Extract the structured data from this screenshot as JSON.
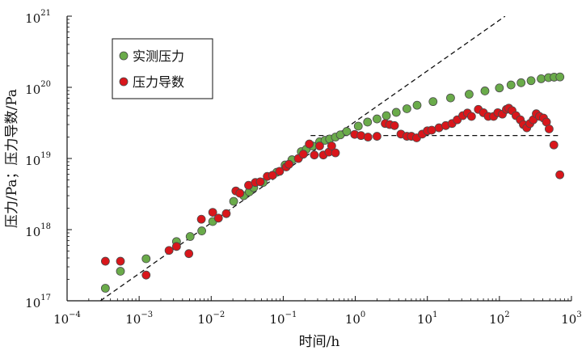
{
  "chart_data": {
    "type": "scatter",
    "title": "",
    "xlabel": "时间/h",
    "ylabel": "压力/Pa；压力导数/Pa",
    "x_scale": "log",
    "y_scale": "log",
    "xlim": [
      0.0001,
      1000
    ],
    "ylim": [
      1e+17,
      1e+21
    ],
    "grid": false,
    "legend_position": "top-left",
    "x_ticks": [
      {
        "base": "10",
        "exp": "−4",
        "value": 0.0001
      },
      {
        "base": "10",
        "exp": "−3",
        "value": 0.001
      },
      {
        "base": "10",
        "exp": "−2",
        "value": 0.01
      },
      {
        "base": "10",
        "exp": "−1",
        "value": 0.1
      },
      {
        "base": "10",
        "exp": "0",
        "value": 1
      },
      {
        "base": "10",
        "exp": "1",
        "value": 10
      },
      {
        "base": "10",
        "exp": "2",
        "value": 100
      },
      {
        "base": "10",
        "exp": "3",
        "value": 1000
      }
    ],
    "y_ticks": [
      {
        "base": "10",
        "exp": "17",
        "value": 1e+17
      },
      {
        "base": "10",
        "exp": "18",
        "value": 1e+18
      },
      {
        "base": "10",
        "exp": "19",
        "value": 1e+19
      },
      {
        "base": "10",
        "exp": "20",
        "value": 1e+20
      },
      {
        "base": "10",
        "exp": "21",
        "value": 1e+21
      }
    ],
    "series": [
      {
        "name": "实测压力",
        "color": "#6aab4a",
        "points": [
          [
            0.00034,
            1.5e+17
          ],
          [
            0.00055,
            2.6e+17
          ],
          [
            0.00125,
            3.9e+17
          ],
          [
            0.0033,
            6.8e+17
          ],
          [
            0.0051,
            8e+17
          ],
          [
            0.0074,
            9.6e+17
          ],
          [
            0.0105,
            1.3e+18
          ],
          [
            0.0205,
            2.5e+18
          ],
          [
            0.0283,
            3e+18
          ],
          [
            0.0338,
            3.4e+18
          ],
          [
            0.0389,
            3.9e+18
          ],
          [
            0.0525,
            4.6e+18
          ],
          [
            0.0813,
            6.4e+18
          ],
          [
            0.106,
            8.1e+18
          ],
          [
            0.132,
            9.6e+18
          ],
          [
            0.178,
            1.25e+19
          ],
          [
            0.209,
            1.35e+19
          ],
          [
            0.257,
            1.5e+19
          ],
          [
            0.32,
            1.72e+19
          ],
          [
            0.38,
            1.8e+19
          ],
          [
            0.44,
            1.88e+19
          ],
          [
            0.53,
            2e+19
          ],
          [
            0.62,
            2.15e+19
          ],
          [
            0.76,
            2.4e+19
          ],
          [
            1.1,
            2.85e+19
          ],
          [
            1.48,
            3.25e+19
          ],
          [
            2.0,
            3.6e+19
          ],
          [
            2.7,
            4e+19
          ],
          [
            3.7,
            4.45e+19
          ],
          [
            5.2,
            5e+19
          ],
          [
            7.2,
            5.6e+19
          ],
          [
            12.0,
            6.3e+19
          ],
          [
            21,
            7.1e+19
          ],
          [
            38,
            8e+19
          ],
          [
            63,
            8.9e+19
          ],
          [
            100,
            9.8e+19
          ],
          [
            145,
            1.08e+20
          ],
          [
            200,
            1.16e+20
          ],
          [
            275,
            1.24e+20
          ],
          [
            380,
            1.32e+20
          ],
          [
            480,
            1.37e+20
          ],
          [
            575,
            1.39e+20
          ],
          [
            692,
            1.4e+20
          ]
        ]
      },
      {
        "name": "压力导数",
        "color": "#d9161b",
        "points": [
          [
            0.00034,
            3.6e+17
          ],
          [
            0.00055,
            3.6e+17
          ],
          [
            0.00125,
            2.3e+17
          ],
          [
            0.0026,
            5.1e+17
          ],
          [
            0.0033,
            5.8e+17
          ],
          [
            0.0049,
            4.6e+17
          ],
          [
            0.0073,
            1.4e+18
          ],
          [
            0.0105,
            1.75e+18
          ],
          [
            0.0126,
            1.45e+18
          ],
          [
            0.0162,
            1.68e+18
          ],
          [
            0.022,
            3.5e+18
          ],
          [
            0.025,
            3.25e+18
          ],
          [
            0.033,
            4.2e+18
          ],
          [
            0.041,
            4.6e+18
          ],
          [
            0.048,
            4.7e+18
          ],
          [
            0.06,
            5.6e+18
          ],
          [
            0.071,
            5.8e+18
          ],
          [
            0.089,
            6.6e+18
          ],
          [
            0.11,
            7.6e+18
          ],
          [
            0.12,
            8.3e+18
          ],
          [
            0.162,
            1e+19
          ],
          [
            0.19,
            1.15e+19
          ],
          [
            0.23,
            1.6e+19
          ],
          [
            0.27,
            1.12e+19
          ],
          [
            0.32,
            1.5e+19
          ],
          [
            0.36,
            1.12e+19
          ],
          [
            0.43,
            1.23e+19
          ],
          [
            0.47,
            1.5e+19
          ],
          [
            0.53,
            1.2e+19
          ],
          [
            0.98,
            2.18e+19
          ],
          [
            1.2,
            2.1e+19
          ],
          [
            1.5,
            2e+19
          ],
          [
            2.0,
            2.05e+19
          ],
          [
            2.6,
            3.1e+19
          ],
          [
            3.0,
            3e+19
          ],
          [
            3.5,
            2.9e+19
          ],
          [
            4.3,
            2.2e+19
          ],
          [
            5.2,
            2.05e+19
          ],
          [
            6.0,
            2.05e+19
          ],
          [
            7.1,
            1.95e+19
          ],
          [
            8.5,
            2.2e+19
          ],
          [
            10.0,
            2.45e+19
          ],
          [
            11.5,
            2.5e+19
          ],
          [
            14.5,
            2.7e+19
          ],
          [
            18.0,
            2.9e+19
          ],
          [
            22.0,
            3.1e+19
          ],
          [
            26.0,
            3.5e+19
          ],
          [
            31.0,
            4e+19
          ],
          [
            36.0,
            4.35e+19
          ],
          [
            41.0,
            3.9e+19
          ],
          [
            51.0,
            4.9e+19
          ],
          [
            60.0,
            4.4e+19
          ],
          [
            70.0,
            3.9e+19
          ],
          [
            83.0,
            3.9e+19
          ],
          [
            95.0,
            4.4e+19
          ],
          [
            110.0,
            4.2e+19
          ],
          [
            125.0,
            4.9e+19
          ],
          [
            135.0,
            5.1e+19
          ],
          [
            150.0,
            4.7e+19
          ],
          [
            170.0,
            4e+19
          ],
          [
            195.0,
            3.5e+19
          ],
          [
            215.0,
            3e+19
          ],
          [
            240.0,
            2.7e+19
          ],
          [
            265.0,
            3.1e+19
          ],
          [
            295.0,
            3.5e+19
          ],
          [
            325.0,
            4.25e+19
          ],
          [
            360.0,
            3.9e+19
          ],
          [
            410.0,
            3.7e+19
          ],
          [
            450.0,
            3.25e+19
          ],
          [
            490.0,
            2.6e+19
          ],
          [
            570.0,
            1.55e+19
          ],
          [
            690.0,
            5.9e+18
          ]
        ]
      }
    ],
    "reference_lines": [
      {
        "style": "dashed",
        "color": "#111111",
        "points": [
          [
            0.00029,
            1e+17
          ],
          [
            120,
            1e+21
          ]
        ]
      },
      {
        "style": "dashed",
        "color": "#111111",
        "points": [
          [
            0.24,
            2.1e+19
          ],
          [
            700,
            2.1e+19
          ]
        ]
      }
    ]
  }
}
